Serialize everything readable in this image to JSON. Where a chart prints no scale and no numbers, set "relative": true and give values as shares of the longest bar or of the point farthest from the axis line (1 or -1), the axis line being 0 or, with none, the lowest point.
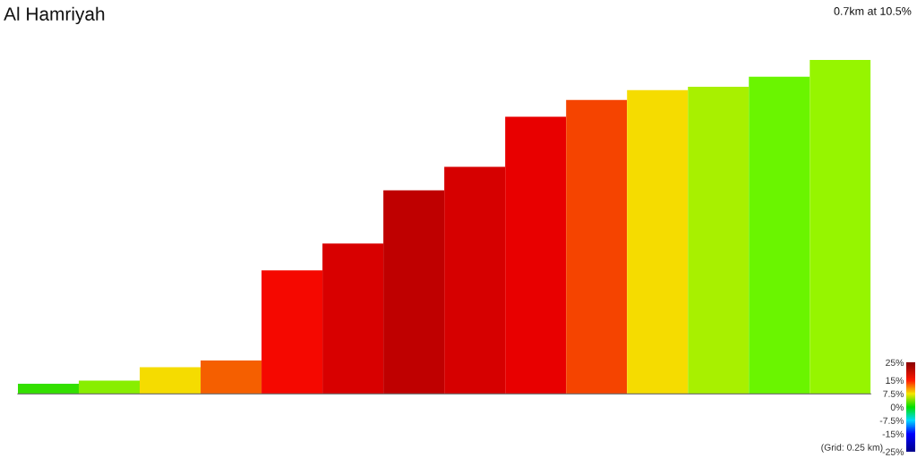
{
  "chart_data": {
    "type": "bar",
    "title": "Al Hamriyah",
    "subtitle": "0.7km at 10.5%",
    "annotations": [
      "(Grid: 0.25 km)"
    ],
    "categories": [
      null,
      null,
      null,
      null,
      null,
      null,
      null,
      null,
      null,
      null,
      null,
      null,
      null,
      null
    ],
    "values": [
      0.03,
      0.04,
      0.08,
      0.1,
      0.37,
      0.45,
      0.61,
      0.68,
      0.83,
      0.88,
      0.91,
      0.92,
      0.95,
      1.0
    ],
    "colors": [
      "#33e000",
      "#88ee00",
      "#f5dc00",
      "#f55f00",
      "#f50800",
      "#d80000",
      "#bf0000",
      "#d60000",
      "#e80000",
      "#f54400",
      "#f5dc00",
      "#a8f000",
      "#6af500",
      "#96f500"
    ],
    "relative": true,
    "clim": [
      -25,
      25
    ],
    "cticks": [
      {
        "value": 25,
        "label": "25%"
      },
      {
        "value": 15,
        "label": "15%"
      },
      {
        "value": 7.5,
        "label": "7.5%"
      },
      {
        "value": 0,
        "label": "0%"
      },
      {
        "value": -7.5,
        "label": "-7.5%"
      },
      {
        "value": -15,
        "label": "-15%"
      },
      {
        "value": -25,
        "label": "-25%"
      }
    ]
  }
}
